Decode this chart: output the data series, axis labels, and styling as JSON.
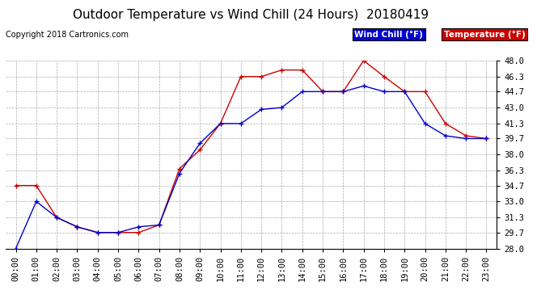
{
  "title": "Outdoor Temperature vs Wind Chill (24 Hours)  20180419",
  "copyright": "Copyright 2018 Cartronics.com",
  "ylim": [
    28.0,
    48.0
  ],
  "yticks": [
    28.0,
    29.7,
    31.3,
    33.0,
    34.7,
    36.3,
    38.0,
    39.7,
    41.3,
    43.0,
    44.7,
    46.3,
    48.0
  ],
  "hours": [
    0,
    1,
    2,
    3,
    4,
    5,
    6,
    7,
    8,
    9,
    10,
    11,
    12,
    13,
    14,
    15,
    16,
    17,
    18,
    19,
    20,
    21,
    22,
    23
  ],
  "temperature": [
    34.7,
    34.7,
    31.3,
    30.3,
    29.7,
    29.7,
    29.7,
    30.5,
    36.5,
    38.5,
    41.3,
    46.3,
    46.3,
    47.0,
    47.0,
    44.7,
    44.7,
    48.0,
    46.3,
    44.7,
    44.7,
    41.3,
    40.0,
    39.7
  ],
  "wind_chill": [
    28.0,
    33.0,
    31.3,
    30.3,
    29.7,
    29.7,
    30.3,
    30.5,
    36.0,
    39.2,
    41.3,
    41.3,
    42.8,
    43.0,
    44.7,
    44.7,
    44.7,
    45.3,
    44.7,
    44.7,
    41.3,
    40.0,
    39.7,
    39.7
  ],
  "temp_color": "#cc0000",
  "wind_chill_color": "#0000cc",
  "legend_wind_chill_bg": "#0000cc",
  "legend_temp_bg": "#cc0000",
  "legend_wind_chill_text": "Wind Chill (°F)",
  "legend_temp_text": "Temperature (°F)",
  "background_color": "#ffffff",
  "grid_color": "#aaaaaa",
  "title_fontsize": 11,
  "tick_fontsize": 7.5,
  "copyright_fontsize": 7
}
